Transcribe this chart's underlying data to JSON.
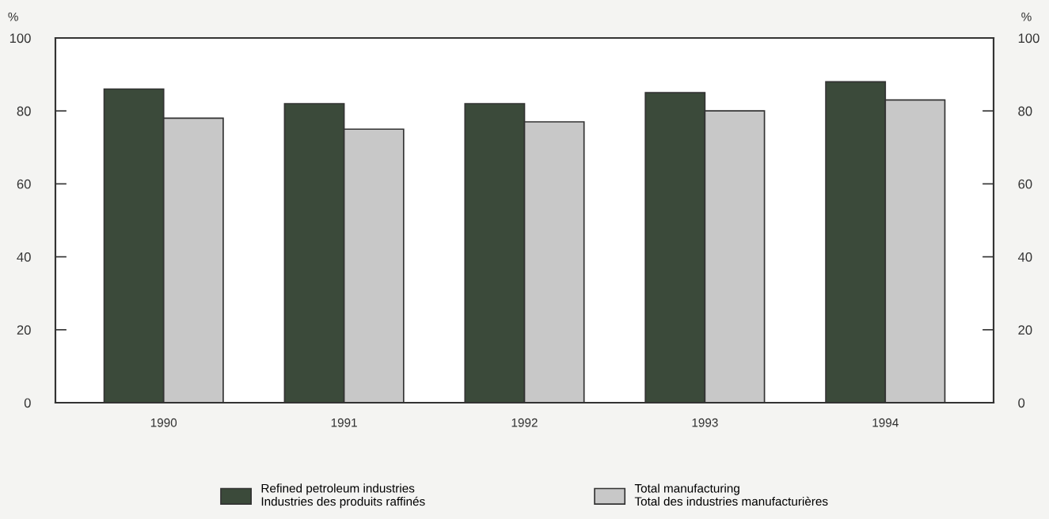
{
  "chart_data": {
    "type": "bar",
    "ylabel": "%",
    "y2label": "%",
    "categories": [
      "1990",
      "1991",
      "1992",
      "1993",
      "1994"
    ],
    "series": [
      {
        "name": "Refined petroleum industries\nIndustries des produits raffinés",
        "color": "#3b4a3a",
        "values": [
          86,
          82,
          82,
          85,
          88
        ]
      },
      {
        "name": "Total manufacturing\nTotal des industries manufacturières",
        "color": "#c8c8c8",
        "values": [
          78,
          75,
          77,
          80,
          83
        ]
      }
    ],
    "ylim": [
      0,
      100
    ],
    "yticks": [
      0,
      20,
      40,
      60,
      80,
      100
    ],
    "y2lim": [
      0,
      100
    ],
    "y2ticks": [
      0,
      20,
      40,
      60,
      80,
      100
    ],
    "grid": false,
    "legend": "bottom"
  }
}
